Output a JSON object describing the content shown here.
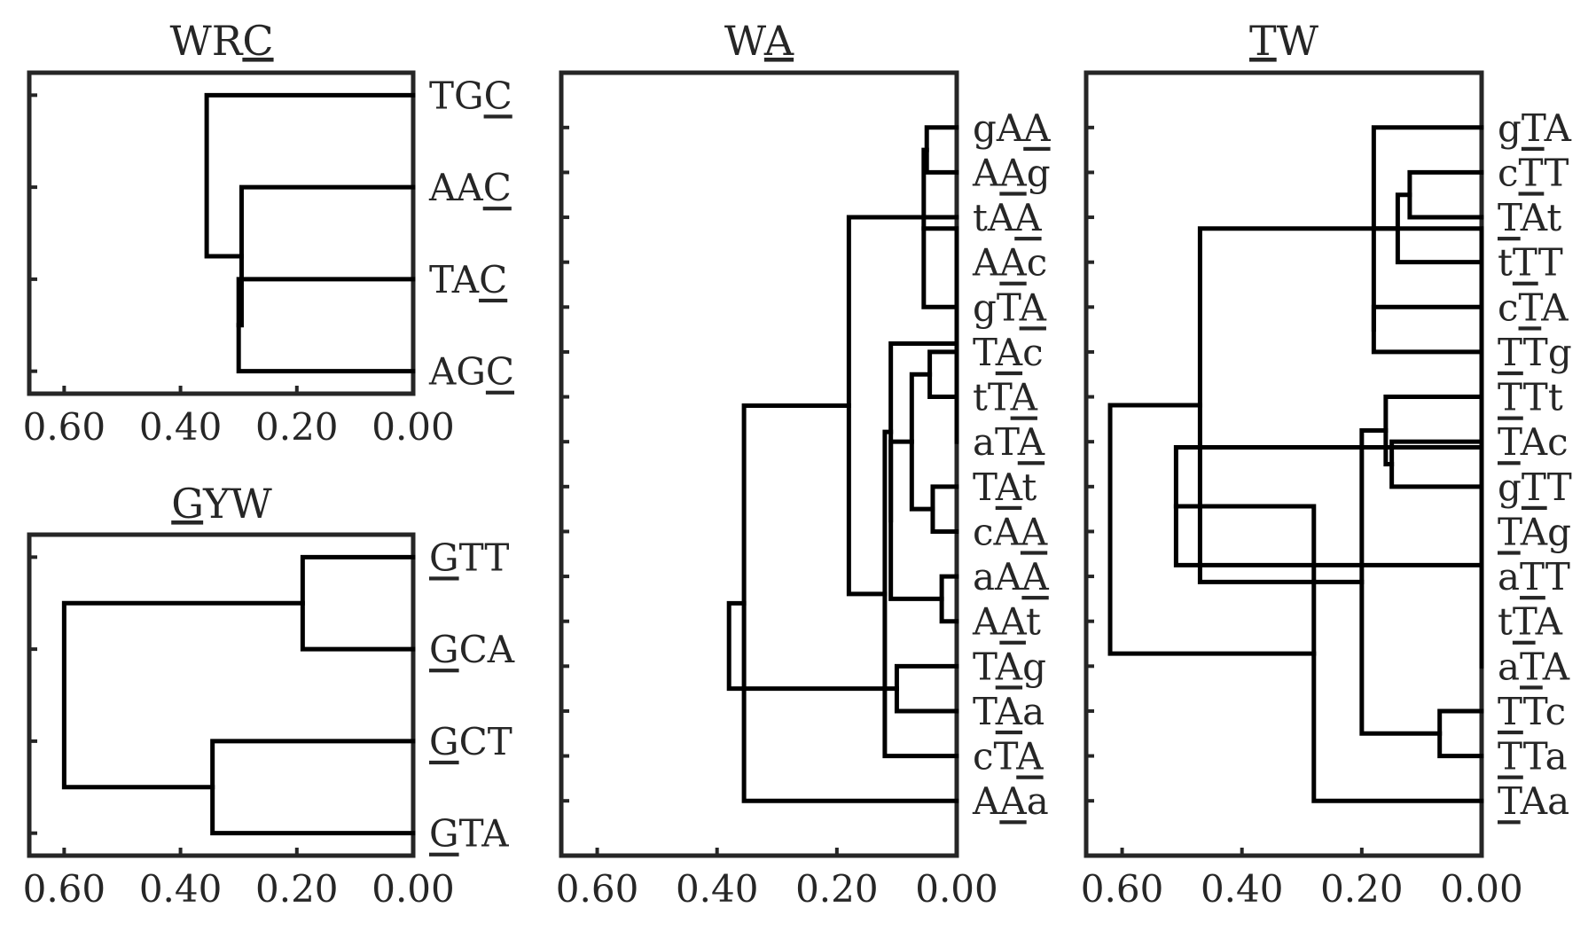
{
  "figure": {
    "x_ticks": [
      "0.60",
      "0.40",
      "0.20",
      "0.00"
    ],
    "tick_values": [
      0.6,
      0.4,
      0.2,
      0.0
    ],
    "x_max": 0.66
  },
  "panels": [
    {
      "id": "wrc",
      "title": "WRC",
      "title_underline": 2,
      "leaves": [
        {
          "text": "TGC",
          "underline": 2
        },
        {
          "text": "AAC",
          "underline": 2
        },
        {
          "text": "TAC",
          "underline": 2
        },
        {
          "text": "AGC",
          "underline": 2
        }
      ],
      "merges": [
        [
          2,
          3,
          0.3
        ],
        [
          1,
          4,
          0.295
        ],
        [
          0,
          5,
          0.355
        ]
      ]
    },
    {
      "id": "gyw",
      "title": "GYW",
      "title_underline": 0,
      "leaves": [
        {
          "text": "GTT",
          "underline": 0
        },
        {
          "text": "GCA",
          "underline": 0
        },
        {
          "text": "GCT",
          "underline": 0
        },
        {
          "text": "GTA",
          "underline": 0
        }
      ],
      "merges": [
        [
          0,
          1,
          0.19
        ],
        [
          2,
          3,
          0.345
        ],
        [
          4,
          5,
          0.6
        ]
      ]
    },
    {
      "id": "wa",
      "title": "WA",
      "title_underline": 1,
      "leaves": [
        {
          "text": "gAA",
          "underline": 2
        },
        {
          "text": "AAg",
          "underline": 1
        },
        {
          "text": "tAA",
          "underline": 2
        },
        {
          "text": "AAc",
          "underline": 1
        },
        {
          "text": "gTA",
          "underline": 2
        },
        {
          "text": "TAc",
          "underline": 1
        },
        {
          "text": "tTA",
          "underline": 2
        },
        {
          "text": "aTA",
          "underline": 2
        },
        {
          "text": "TAt",
          "underline": 1
        },
        {
          "text": "cAA",
          "underline": 2
        },
        {
          "text": "aAA",
          "underline": 2
        },
        {
          "text": "AAt",
          "underline": 1
        },
        {
          "text": "TAg",
          "underline": 1
        },
        {
          "text": "TAa",
          "underline": 1
        },
        {
          "text": "cTA",
          "underline": 2
        },
        {
          "text": "AAa",
          "underline": 1
        }
      ],
      "merges": [
        [
          0,
          1,
          0.05
        ],
        [
          5,
          6,
          0.045
        ],
        [
          10,
          11,
          0.025
        ],
        [
          8,
          9,
          0.04
        ],
        [
          4,
          16,
          0.055
        ],
        [
          3,
          20,
          0.0
        ],
        [
          7,
          21,
          0.0
        ],
        [
          17,
          19,
          0.075
        ],
        [
          12,
          13,
          0.1
        ],
        [
          18,
          23,
          0.11
        ],
        [
          22,
          25,
          0.11
        ],
        [
          14,
          26,
          0.12
        ],
        [
          2,
          27,
          0.18
        ],
        [
          15,
          28,
          0.355
        ],
        [
          24,
          29,
          0.38
        ]
      ]
    },
    {
      "id": "tw",
      "title": "TW",
      "title_underline": 0,
      "leaves": [
        {
          "text": "gTA",
          "underline": 1
        },
        {
          "text": "cTT",
          "underline": 1
        },
        {
          "text": "TAt",
          "underline": 0
        },
        {
          "text": "tTT",
          "underline": 1
        },
        {
          "text": "cTA",
          "underline": 1
        },
        {
          "text": "TTg",
          "underline": 0
        },
        {
          "text": "TTt",
          "underline": 0
        },
        {
          "text": "TAc",
          "underline": 0
        },
        {
          "text": "gTT",
          "underline": 1
        },
        {
          "text": "TAg",
          "underline": 0
        },
        {
          "text": "aTT",
          "underline": 1
        },
        {
          "text": "tTA",
          "underline": 1
        },
        {
          "text": "aTA",
          "underline": 1
        },
        {
          "text": "TTc",
          "underline": 0
        },
        {
          "text": "TTa",
          "underline": 0
        },
        {
          "text": "TAa",
          "underline": 0
        }
      ],
      "merges": [
        [
          7,
          8,
          0.15
        ],
        [
          1,
          2,
          0.12
        ],
        [
          6,
          16,
          0.16
        ],
        [
          13,
          14,
          0.07
        ],
        [
          4,
          5,
          0.18
        ],
        [
          17,
          3,
          0.14
        ],
        [
          19,
          18,
          0.2
        ],
        [
          0,
          20,
          0.18
        ],
        [
          10,
          11,
          0.0
        ],
        [
          23,
          12,
          0.0
        ],
        [
          24,
          9,
          0.0
        ],
        [
          22,
          21,
          0.47
        ],
        [
          26,
          25,
          0.51
        ],
        [
          28,
          15,
          0.28
        ],
        [
          27,
          29,
          0.62
        ]
      ]
    }
  ]
}
